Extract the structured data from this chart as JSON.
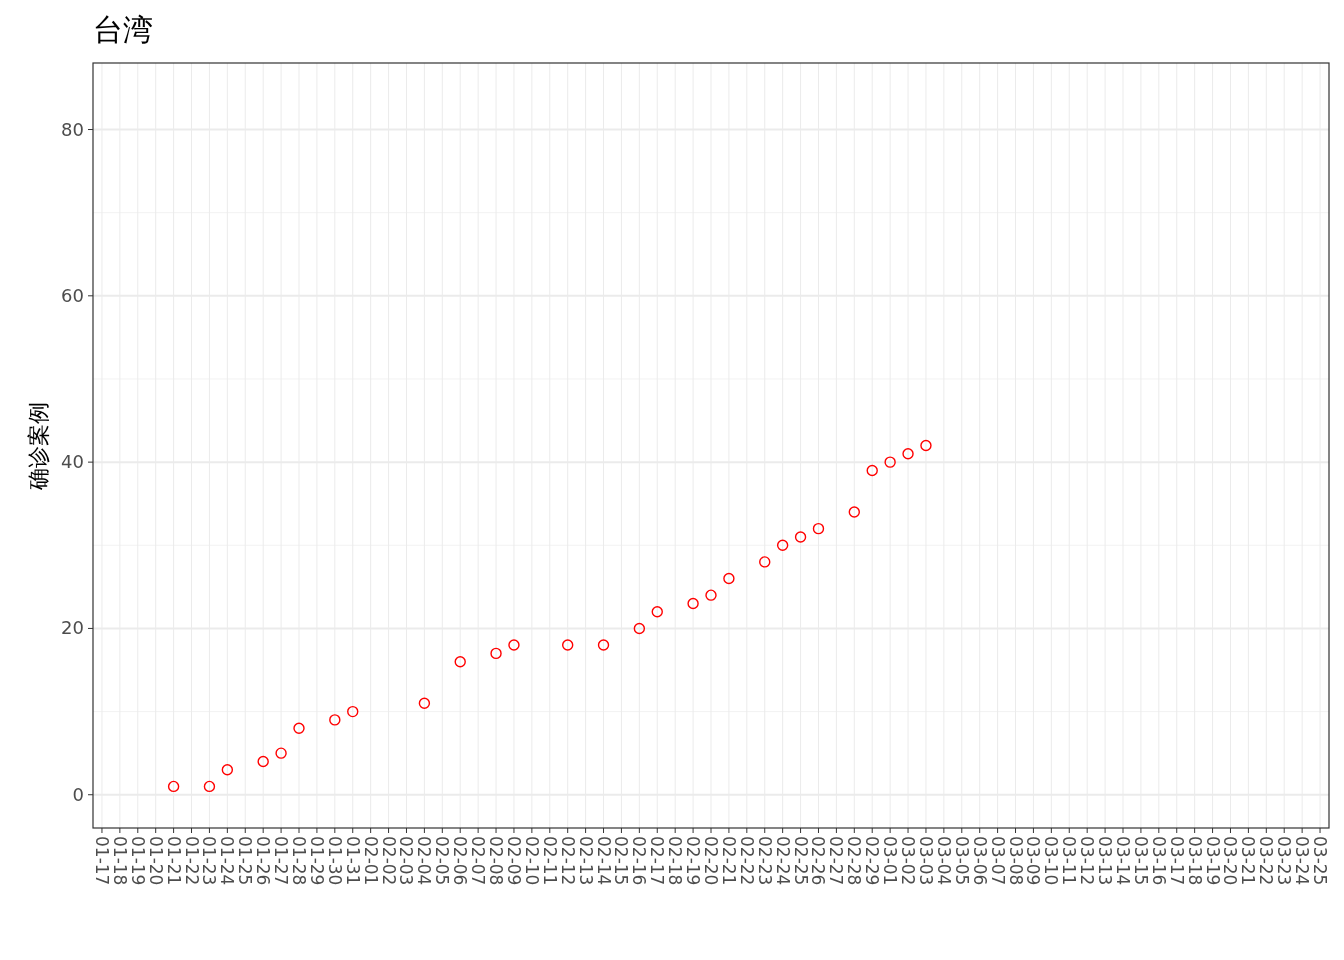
{
  "chart_data": {
    "type": "scatter",
    "title": "台湾",
    "ylabel": "确诊案例",
    "categories": [
      "01-17",
      "01-18",
      "01-19",
      "01-20",
      "01-21",
      "01-22",
      "01-23",
      "01-24",
      "01-25",
      "01-26",
      "01-27",
      "01-28",
      "01-29",
      "01-30",
      "01-31",
      "02-01",
      "02-02",
      "02-03",
      "02-04",
      "02-05",
      "02-06",
      "02-07",
      "02-08",
      "02-09",
      "02-10",
      "02-11",
      "02-12",
      "02-13",
      "02-14",
      "02-15",
      "02-16",
      "02-17",
      "02-18",
      "02-19",
      "02-20",
      "02-21",
      "02-22",
      "02-23",
      "02-24",
      "02-25",
      "02-26",
      "02-27",
      "02-28",
      "02-29",
      "03-01",
      "03-02",
      "03-03",
      "03-04",
      "03-05",
      "03-06",
      "03-07",
      "03-08",
      "03-09",
      "03-10",
      "03-11",
      "03-12",
      "03-13",
      "03-14",
      "03-15",
      "03-16",
      "03-17",
      "03-18",
      "03-19",
      "03-20",
      "03-21",
      "03-22",
      "03-23",
      "03-24",
      "03-25"
    ],
    "values": [
      null,
      null,
      null,
      null,
      1,
      null,
      1,
      3,
      null,
      4,
      5,
      8,
      null,
      9,
      10,
      null,
      null,
      null,
      11,
      null,
      16,
      null,
      17,
      18,
      null,
      null,
      18,
      null,
      18,
      null,
      20,
      22,
      null,
      23,
      24,
      26,
      null,
      28,
      30,
      31,
      32,
      null,
      34,
      39,
      40,
      41,
      42,
      null,
      null,
      null,
      null,
      null,
      null,
      null,
      null,
      null,
      null,
      null,
      null,
      null,
      null,
      null,
      null,
      null,
      null,
      null,
      null,
      null,
      null
    ],
    "color": "#ff0000",
    "marker": "circle",
    "ylim": [
      -4,
      88
    ],
    "yticks": [
      0,
      20,
      40,
      60,
      80
    ],
    "grid": true
  }
}
